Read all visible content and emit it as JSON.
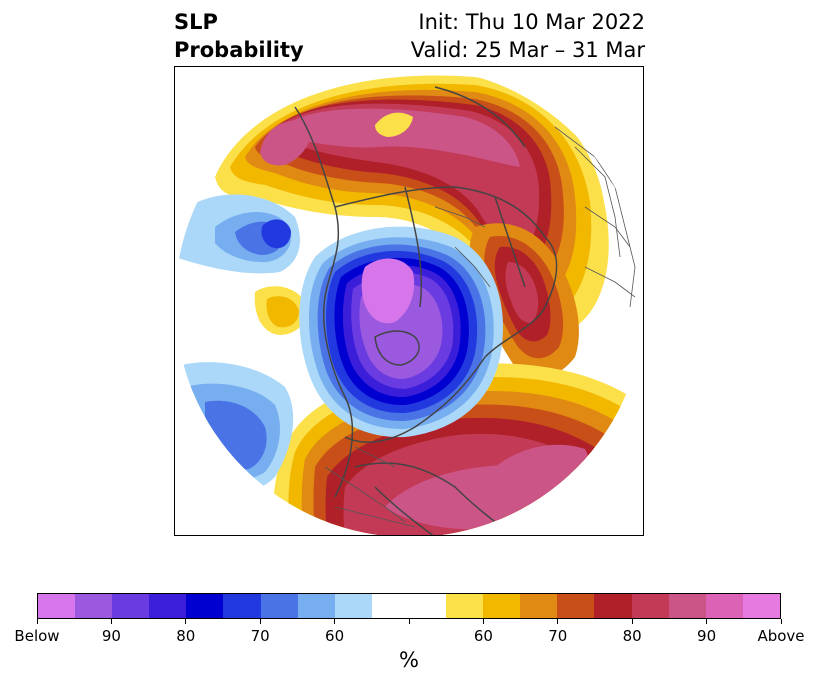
{
  "header": {
    "title_line1": "SLP",
    "title_line2": "Probability",
    "init_text": "Init: Thu 10 Mar 2022",
    "valid_text": "Valid: 25 Mar – 31 Mar"
  },
  "colorbar": {
    "colors": [
      "#d676ea",
      "#9b59e0",
      "#6a3be0",
      "#3b1ed9",
      "#0000d0",
      "#2339e0",
      "#4a73e6",
      "#76aef0",
      "#abd8f8",
      "#ffffff",
      "#ffffff",
      "#fbe04a",
      "#f2b800",
      "#e08a14",
      "#c85018",
      "#b02028",
      "#c23a56",
      "#cc5588",
      "#dc62b6",
      "#e77ae0"
    ],
    "tick_labels": [
      "Below",
      "90",
      "80",
      "70",
      "60",
      "",
      "60",
      "70",
      "80",
      "90",
      "Above"
    ],
    "unit": "%"
  },
  "map": {
    "description_colors": {
      "land_lines": "#444444",
      "below_core": "#d676ea",
      "above_core": "#dc62b6"
    }
  }
}
